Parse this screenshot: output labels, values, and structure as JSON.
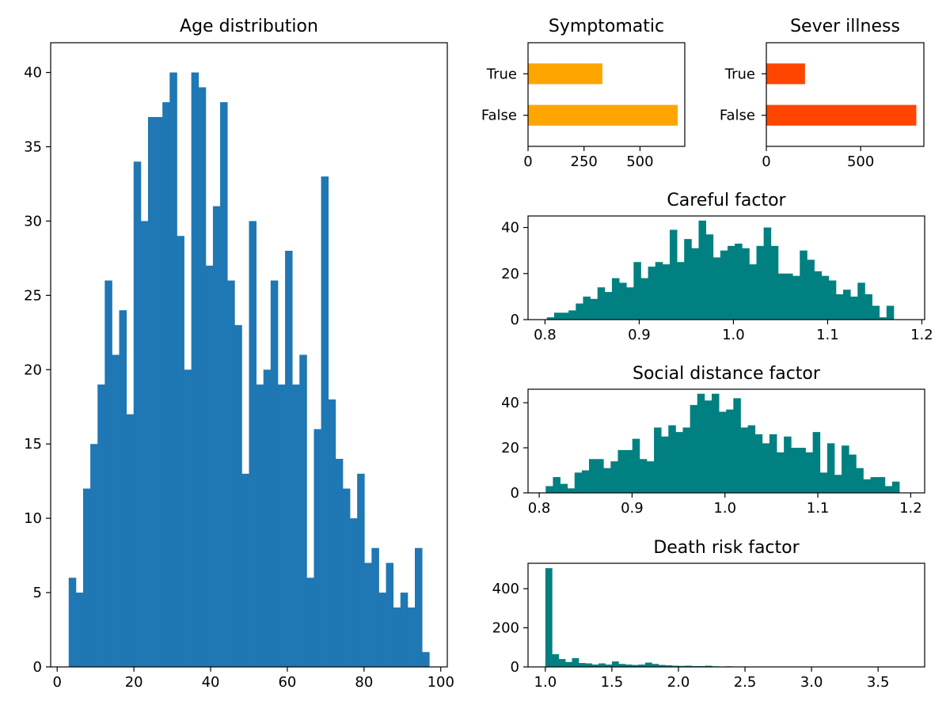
{
  "chart_data": [
    {
      "type": "bar",
      "variant": "histogram",
      "title": "Age distribution",
      "xlabel": "",
      "ylabel": "",
      "color": "#1f77b4",
      "x_start": 3,
      "bin_width": 1.88,
      "values": [
        6,
        5,
        12,
        15,
        19,
        26,
        21,
        24,
        17,
        34,
        30,
        37,
        37,
        38,
        40,
        29,
        20,
        40,
        39,
        27,
        31,
        38,
        26,
        23,
        13,
        30,
        19,
        20,
        26,
        19,
        28,
        19,
        21,
        6,
        16,
        33,
        18,
        14,
        12,
        10,
        13,
        7,
        8,
        5,
        7,
        4,
        5,
        4,
        8,
        1
      ],
      "xlim": [
        -1.7,
        101.7
      ],
      "ylim": [
        0,
        42
      ],
      "xticks": [
        0,
        20,
        40,
        60,
        80,
        100
      ],
      "xtick_labels": [
        "0",
        "20",
        "40",
        "60",
        "80",
        "100"
      ],
      "yticks": [
        0,
        5,
        10,
        15,
        20,
        25,
        30,
        35,
        40
      ],
      "ytick_labels": [
        "0",
        "5",
        "10",
        "15",
        "20",
        "25",
        "30",
        "35",
        "40"
      ],
      "grid": false
    },
    {
      "type": "bar",
      "orientation": "horizontal",
      "title": "Symptomatic",
      "xlabel": "",
      "ylabel": "",
      "color": "#ffa500",
      "categories": [
        "False",
        "True"
      ],
      "values": [
        668,
        332
      ],
      "xlim": [
        0,
        700
      ],
      "xticks": [
        0,
        250,
        500
      ],
      "xtick_labels": [
        "0",
        "250",
        "500"
      ],
      "grid": false
    },
    {
      "type": "bar",
      "orientation": "horizontal",
      "title": "Sever illness",
      "xlabel": "",
      "ylabel": "",
      "color": "#ff4500",
      "categories": [
        "False",
        "True"
      ],
      "values": [
        795,
        205
      ],
      "xlim": [
        0,
        835
      ],
      "xticks": [
        0,
        500
      ],
      "xtick_labels": [
        "0",
        "500"
      ],
      "grid": false
    },
    {
      "type": "bar",
      "variant": "histogram",
      "title": "Careful factor",
      "xlabel": "",
      "ylabel": "",
      "color": "#008080",
      "x_start": 0.802,
      "bin_width": 0.00767,
      "values": [
        1,
        3,
        3,
        4,
        7,
        10,
        9,
        14,
        12,
        18,
        16,
        14,
        25,
        18,
        23,
        25,
        24,
        39,
        25,
        35,
        31,
        43,
        37,
        27,
        30,
        32,
        33,
        31,
        24,
        32,
        40,
        32,
        20,
        20,
        19,
        30,
        26,
        21,
        19,
        17,
        11,
        13,
        10,
        16,
        11,
        6,
        1,
        6
      ],
      "xlim": [
        0.782,
        1.203
      ],
      "ylim": [
        0,
        45
      ],
      "xticks": [
        0.8,
        0.9,
        1.0,
        1.1,
        1.2
      ],
      "xtick_labels": [
        "0.8",
        "0.9",
        "1.0",
        "1.1",
        "1.2"
      ],
      "yticks": [
        0,
        20,
        40
      ],
      "ytick_labels": [
        "0",
        "20",
        "40"
      ],
      "grid": false
    },
    {
      "type": "bar",
      "variant": "histogram",
      "title": "Social distance factor",
      "xlabel": "",
      "ylabel": "",
      "color": "#008080",
      "x_start": 0.807,
      "bin_width": 0.00777,
      "values": [
        3,
        7,
        4,
        2,
        9,
        10,
        15,
        15,
        11,
        14,
        19,
        19,
        24,
        15,
        14,
        29,
        25,
        30,
        27,
        29,
        39,
        44,
        41,
        44,
        36,
        37,
        42,
        29,
        30,
        26,
        22,
        26,
        18,
        25,
        20,
        20,
        18,
        27,
        9,
        22,
        8,
        21,
        17,
        11,
        6,
        7,
        7,
        3,
        5
      ],
      "xlim": [
        0.788,
        1.215
      ],
      "ylim": [
        0,
        46
      ],
      "xticks": [
        0.8,
        0.9,
        1.0,
        1.1,
        1.2
      ],
      "xtick_labels": [
        "0.8",
        "0.9",
        "1.0",
        "1.1",
        "1.2"
      ],
      "yticks": [
        0,
        20,
        40
      ],
      "ytick_labels": [
        "0",
        "20",
        "40"
      ],
      "grid": false
    },
    {
      "type": "bar",
      "variant": "histogram",
      "title": "Death risk factor",
      "xlabel": "",
      "ylabel": "",
      "color": "#008080",
      "x_start": 1.0,
      "bin_width": 0.05,
      "values": [
        505,
        65,
        40,
        25,
        45,
        20,
        18,
        12,
        18,
        12,
        28,
        15,
        12,
        10,
        12,
        22,
        15,
        10,
        8,
        6,
        5,
        6,
        4,
        4,
        6,
        3,
        2,
        3,
        2,
        1,
        2,
        1,
        1,
        1,
        1,
        0,
        1,
        1,
        0,
        0,
        0,
        0,
        0,
        0,
        1,
        0,
        0,
        0,
        0,
        0,
        0,
        0,
        0,
        0
      ],
      "xlim": [
        0.87,
        3.85
      ],
      "ylim": [
        0,
        530
      ],
      "xticks": [
        1.0,
        1.5,
        2.0,
        2.5,
        3.0,
        3.5
      ],
      "xtick_labels": [
        "1.0",
        "1.5",
        "2.0",
        "2.5",
        "3.0",
        "3.5"
      ],
      "yticks": [
        0,
        200,
        400
      ],
      "ytick_labels": [
        "0",
        "200",
        "400"
      ],
      "grid": false
    }
  ]
}
